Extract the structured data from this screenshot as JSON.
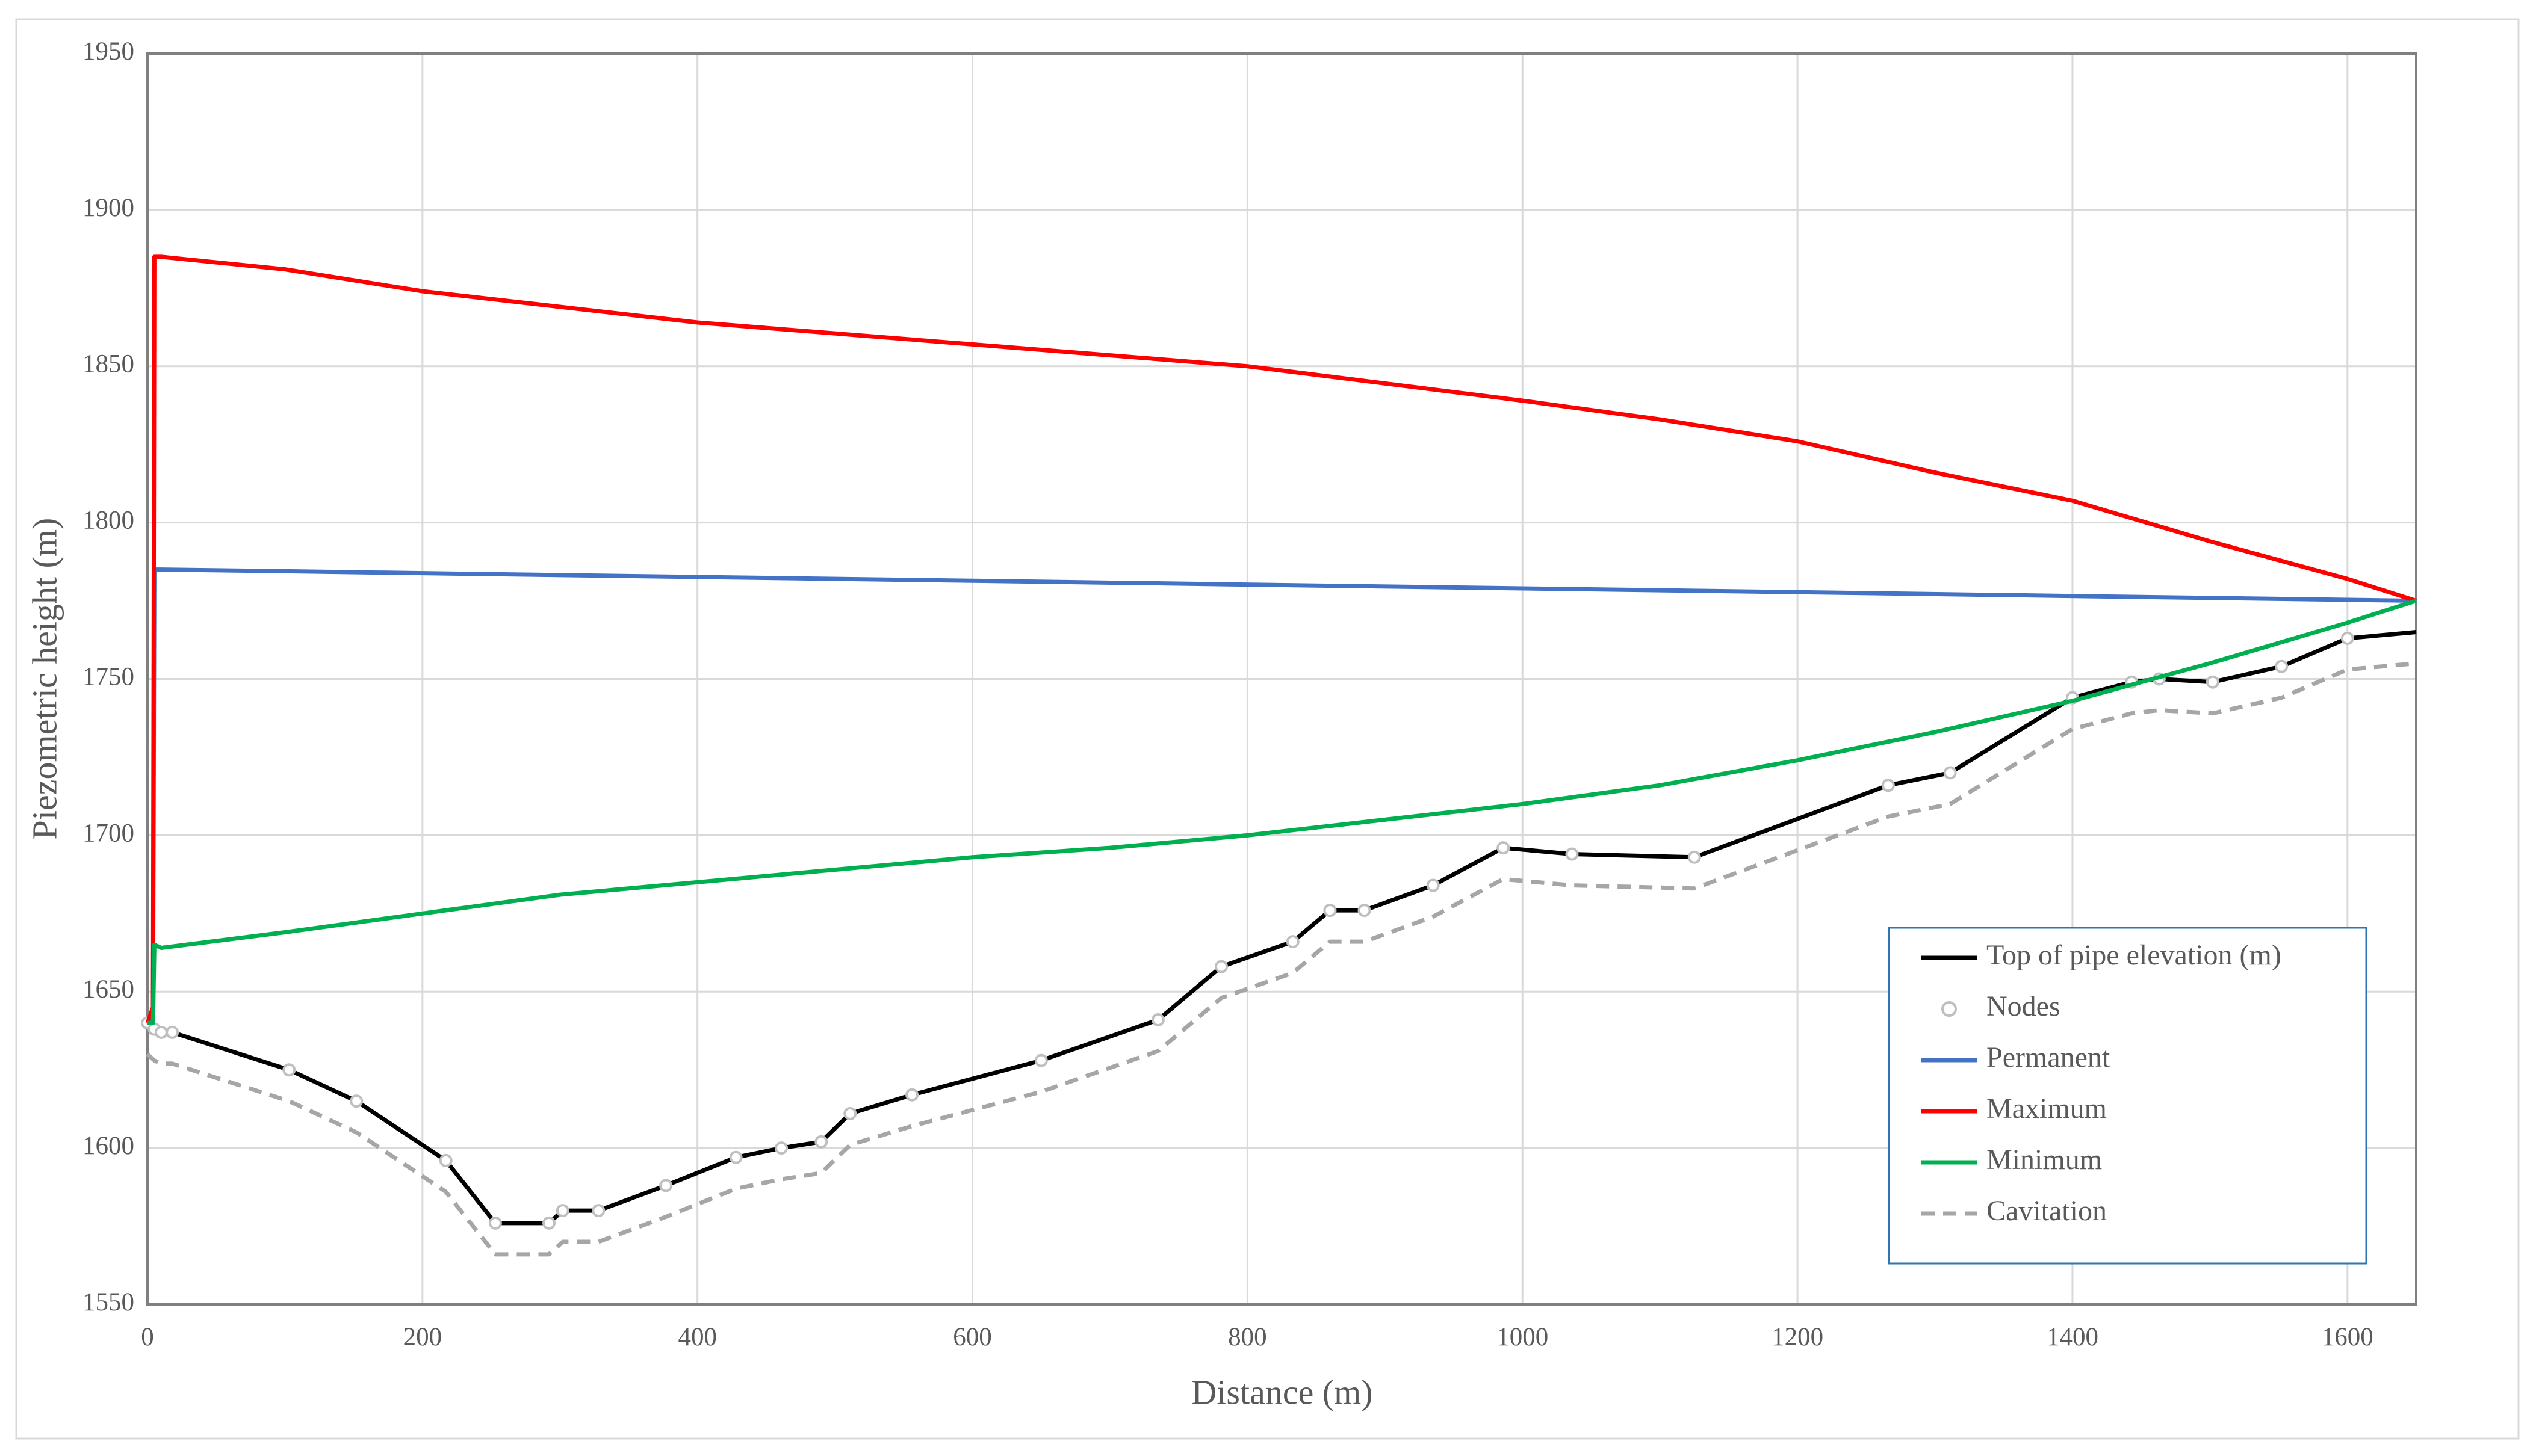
{
  "chart_data": {
    "type": "line",
    "x_label": "Distance (m)",
    "y_label": "Piezometric height (m)",
    "xlim": [
      0,
      1650
    ],
    "xticks": [
      0,
      200,
      400,
      600,
      800,
      1000,
      1200,
      1400,
      1600
    ],
    "ylim": [
      1550,
      1950
    ],
    "yticks": [
      1550,
      1600,
      1650,
      1700,
      1750,
      1800,
      1850,
      1900,
      1950
    ],
    "grid": true,
    "legend": "lower-right",
    "series": [
      {
        "name": "Top of pipe elevation (m)",
        "color": "#000000",
        "style": "solid",
        "marker": "none",
        "x": [
          0,
          5,
          10,
          18,
          103,
          152,
          217,
          253,
          292,
          302,
          328,
          377,
          428,
          461,
          490,
          511,
          556,
          650,
          735,
          781,
          833,
          860,
          885,
          935,
          986,
          1036,
          1125,
          1266,
          1311,
          1400,
          1443,
          1463,
          1502,
          1552,
          1600,
          1650
        ],
        "values": [
          1640,
          1638,
          1637,
          1637,
          1625,
          1615,
          1596,
          1576,
          1576,
          1580,
          1580,
          1588,
          1597,
          1600,
          1602,
          1611,
          1617,
          1628,
          1641,
          1658,
          1666,
          1676,
          1676,
          1684,
          1696,
          1694,
          1693,
          1716,
          1720,
          1744,
          1749,
          1750,
          1749,
          1754,
          1763,
          1765
        ]
      },
      {
        "name": "Nodes",
        "color": "#bfbfbf",
        "style": "none",
        "marker": "circle",
        "x": [
          0,
          5,
          10,
          18,
          103,
          152,
          217,
          253,
          292,
          302,
          328,
          377,
          428,
          461,
          490,
          511,
          556,
          650,
          735,
          781,
          833,
          860,
          885,
          935,
          986,
          1036,
          1125,
          1266,
          1311,
          1400,
          1443,
          1463,
          1502,
          1552,
          1600
        ],
        "values": [
          1640,
          1638,
          1637,
          1637,
          1625,
          1615,
          1596,
          1576,
          1576,
          1580,
          1580,
          1588,
          1597,
          1600,
          1602,
          1611,
          1617,
          1628,
          1641,
          1658,
          1666,
          1676,
          1676,
          1684,
          1696,
          1694,
          1693,
          1716,
          1720,
          1744,
          1749,
          1750,
          1749,
          1754,
          1763
        ]
      },
      {
        "name": "Permanent",
        "color": "#4472c4",
        "style": "solid",
        "marker": "none",
        "x": [
          0,
          4,
          5,
          10,
          1650
        ],
        "values": [
          1640,
          1642,
          1785,
          1785,
          1775
        ]
      },
      {
        "name": "Maximum",
        "color": "#ff0000",
        "style": "solid",
        "marker": "none",
        "x": [
          0,
          4,
          5,
          10,
          100,
          200,
          400,
          600,
          800,
          1000,
          1100,
          1200,
          1300,
          1400,
          1500,
          1600,
          1650
        ],
        "values": [
          1640,
          1645,
          1885,
          1885,
          1881,
          1874,
          1864,
          1857,
          1850,
          1839,
          1833,
          1826,
          1816,
          1807,
          1794,
          1782,
          1775
        ]
      },
      {
        "name": "Minimum",
        "color": "#00b050",
        "style": "solid",
        "marker": "none",
        "x": [
          0,
          4,
          5,
          10,
          100,
          200,
          300,
          400,
          500,
          600,
          700,
          800,
          900,
          1000,
          1100,
          1200,
          1300,
          1400,
          1500,
          1600,
          1650
        ],
        "values": [
          1640,
          1640,
          1665,
          1664,
          1669,
          1675,
          1681,
          1685,
          1689,
          1693,
          1696,
          1700,
          1705,
          1710,
          1716,
          1724,
          1733,
          1743,
          1755,
          1768,
          1775
        ]
      },
      {
        "name": "Cavitation",
        "color": "#a6a6a6",
        "style": "dashed",
        "marker": "none",
        "x": [
          0,
          5,
          10,
          18,
          103,
          152,
          217,
          253,
          292,
          302,
          328,
          377,
          428,
          461,
          490,
          511,
          556,
          650,
          735,
          781,
          833,
          860,
          885,
          935,
          986,
          1036,
          1125,
          1266,
          1311,
          1400,
          1443,
          1463,
          1502,
          1552,
          1600,
          1650
        ],
        "values": [
          1630,
          1628,
          1627,
          1627,
          1615,
          1605,
          1586,
          1566,
          1566,
          1570,
          1570,
          1578,
          1587,
          1590,
          1592,
          1601,
          1607,
          1618,
          1631,
          1648,
          1656,
          1666,
          1666,
          1674,
          1686,
          1684,
          1683,
          1706,
          1710,
          1734,
          1739,
          1740,
          1739,
          1744,
          1753,
          1755
        ]
      }
    ]
  }
}
